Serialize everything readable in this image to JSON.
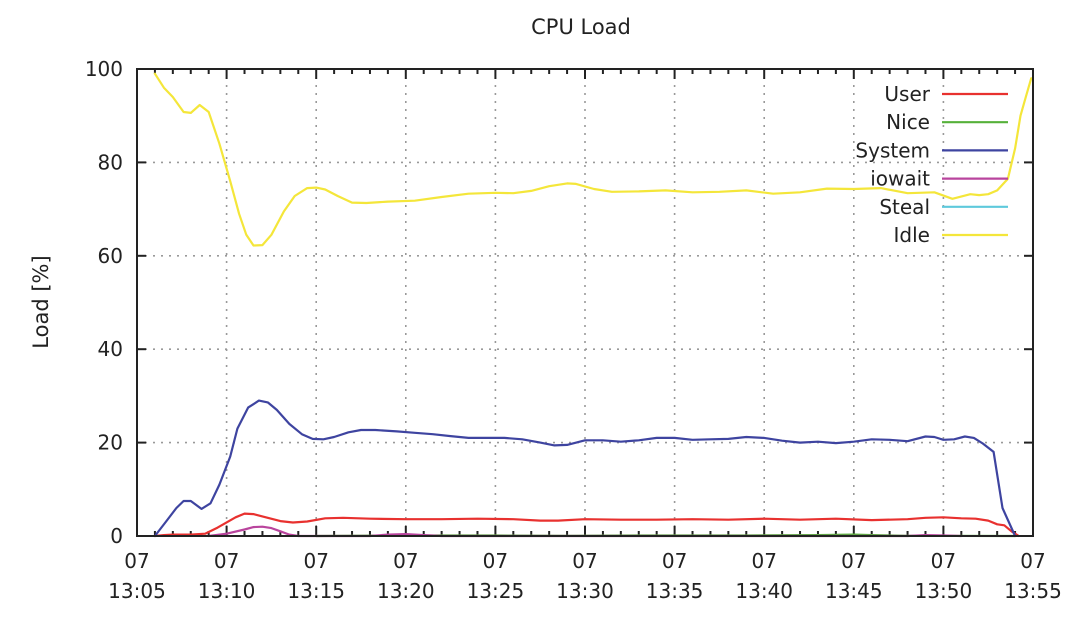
{
  "chart_data": {
    "type": "line",
    "title": "CPU Load",
    "xlabel": "",
    "ylabel": "Load [%]",
    "ylim": [
      0,
      100
    ],
    "xlim_minutes": [
      0,
      50
    ],
    "x_start_label": "13:05",
    "yticks": [
      0,
      20,
      40,
      60,
      80,
      100
    ],
    "xticks": [
      {
        "minute": 0,
        "line1": "07",
        "line2": "13:05"
      },
      {
        "minute": 5,
        "line1": "07",
        "line2": "13:10"
      },
      {
        "minute": 10,
        "line1": "07",
        "line2": "13:15"
      },
      {
        "minute": 15,
        "line1": "07",
        "line2": "13:20"
      },
      {
        "minute": 20,
        "line1": "07",
        "line2": "13:25"
      },
      {
        "minute": 25,
        "line1": "07",
        "line2": "13:30"
      },
      {
        "minute": 30,
        "line1": "07",
        "line2": "13:35"
      },
      {
        "minute": 35,
        "line1": "07",
        "line2": "13:40"
      },
      {
        "minute": 40,
        "line1": "07",
        "line2": "13:45"
      },
      {
        "minute": 45,
        "line1": "07",
        "line2": "13:50"
      },
      {
        "minute": 50,
        "line1": "07",
        "line2": "13:55"
      }
    ],
    "grid": true,
    "legend_position": "upper right (inside)",
    "series": [
      {
        "name": "User",
        "color": "#e8312f",
        "points": [
          [
            1,
            0
          ],
          [
            1.5,
            0.2
          ],
          [
            2,
            0.3
          ],
          [
            3,
            0.3
          ],
          [
            3.8,
            0.5
          ],
          [
            4.5,
            1.8
          ],
          [
            5.5,
            4
          ],
          [
            6,
            4.8
          ],
          [
            6.5,
            4.7
          ],
          [
            7,
            4.2
          ],
          [
            8,
            3.2
          ],
          [
            8.7,
            2.9
          ],
          [
            9.5,
            3.1
          ],
          [
            10.5,
            3.8
          ],
          [
            11.5,
            3.9
          ],
          [
            13,
            3.7
          ],
          [
            15,
            3.6
          ],
          [
            17,
            3.6
          ],
          [
            19,
            3.7
          ],
          [
            21,
            3.6
          ],
          [
            22.5,
            3.3
          ],
          [
            23.5,
            3.3
          ],
          [
            25,
            3.6
          ],
          [
            27,
            3.5
          ],
          [
            29,
            3.5
          ],
          [
            31,
            3.6
          ],
          [
            33,
            3.5
          ],
          [
            35,
            3.7
          ],
          [
            37,
            3.5
          ],
          [
            39,
            3.7
          ],
          [
            41,
            3.4
          ],
          [
            43,
            3.6
          ],
          [
            44,
            3.9
          ],
          [
            45,
            4
          ],
          [
            46,
            3.8
          ],
          [
            46.8,
            3.7
          ],
          [
            47.5,
            3.3
          ],
          [
            48,
            2.5
          ],
          [
            48.4,
            2.3
          ],
          [
            48.8,
            1
          ],
          [
            49.2,
            0
          ]
        ]
      },
      {
        "name": "Nice",
        "color": "#56b13a",
        "points": [
          [
            10,
            0
          ],
          [
            14,
            0.1
          ],
          [
            20,
            0.1
          ],
          [
            24,
            0.05
          ],
          [
            28,
            0.1
          ],
          [
            34,
            0.1
          ],
          [
            38,
            0.2
          ],
          [
            40,
            0.3
          ],
          [
            41,
            0.2
          ],
          [
            43,
            0.05
          ],
          [
            49,
            0
          ]
        ]
      },
      {
        "name": "System",
        "color": "#3e44a0",
        "points": [
          [
            1,
            0
          ],
          [
            1.6,
            3
          ],
          [
            2.2,
            6
          ],
          [
            2.6,
            7.5
          ],
          [
            3,
            7.5
          ],
          [
            3.6,
            5.8
          ],
          [
            4.1,
            7
          ],
          [
            4.6,
            11
          ],
          [
            5.2,
            17
          ],
          [
            5.6,
            23
          ],
          [
            6.2,
            27.5
          ],
          [
            6.8,
            29
          ],
          [
            7.3,
            28.6
          ],
          [
            7.8,
            27
          ],
          [
            8.5,
            24
          ],
          [
            9.2,
            21.8
          ],
          [
            9.8,
            20.8
          ],
          [
            10.4,
            20.7
          ],
          [
            11,
            21.2
          ],
          [
            11.8,
            22.2
          ],
          [
            12.5,
            22.7
          ],
          [
            13.3,
            22.7
          ],
          [
            14.5,
            22.4
          ],
          [
            15.5,
            22.1
          ],
          [
            16.5,
            21.8
          ],
          [
            17.5,
            21.4
          ],
          [
            18.5,
            21
          ],
          [
            19.5,
            21
          ],
          [
            20.5,
            21
          ],
          [
            21.5,
            20.7
          ],
          [
            22.5,
            20
          ],
          [
            23.3,
            19.4
          ],
          [
            24,
            19.5
          ],
          [
            25,
            20.5
          ],
          [
            26,
            20.5
          ],
          [
            27,
            20.2
          ],
          [
            28,
            20.5
          ],
          [
            29,
            21
          ],
          [
            30,
            21
          ],
          [
            31,
            20.6
          ],
          [
            32,
            20.7
          ],
          [
            33,
            20.8
          ],
          [
            34,
            21.2
          ],
          [
            35,
            21
          ],
          [
            36,
            20.4
          ],
          [
            37,
            20
          ],
          [
            38,
            20.2
          ],
          [
            39,
            19.9
          ],
          [
            40,
            20.2
          ],
          [
            41,
            20.7
          ],
          [
            42,
            20.6
          ],
          [
            43,
            20.3
          ],
          [
            44,
            21.3
          ],
          [
            44.5,
            21.2
          ],
          [
            45,
            20.6
          ],
          [
            45.6,
            20.7
          ],
          [
            46.2,
            21.3
          ],
          [
            46.7,
            21
          ],
          [
            47.2,
            19.8
          ],
          [
            47.8,
            18
          ],
          [
            48.3,
            6
          ],
          [
            49,
            0
          ]
        ]
      },
      {
        "name": "iowait",
        "color": "#b9449d",
        "points": [
          [
            4,
            0
          ],
          [
            5,
            0.5
          ],
          [
            6,
            1.4
          ],
          [
            6.5,
            1.9
          ],
          [
            7,
            2
          ],
          [
            7.5,
            1.7
          ],
          [
            8,
            1
          ],
          [
            8.5,
            0.3
          ],
          [
            9,
            0
          ],
          [
            13,
            0
          ],
          [
            14,
            0.3
          ],
          [
            15,
            0.4
          ],
          [
            16,
            0.2
          ],
          [
            17,
            0
          ],
          [
            43,
            0
          ],
          [
            44,
            0.2
          ],
          [
            45,
            0.1
          ],
          [
            46,
            0
          ]
        ]
      },
      {
        "name": "Steal",
        "color": "#5ec9dc",
        "points": []
      },
      {
        "name": "Idle",
        "color": "#f4e63a",
        "points": [
          [
            1,
            99
          ],
          [
            1.5,
            96
          ],
          [
            2,
            94
          ],
          [
            2.6,
            90.8
          ],
          [
            3,
            90.6
          ],
          [
            3.5,
            92.3
          ],
          [
            4,
            90.8
          ],
          [
            4.6,
            84
          ],
          [
            5.2,
            76
          ],
          [
            5.7,
            69
          ],
          [
            6.1,
            64.5
          ],
          [
            6.5,
            62.2
          ],
          [
            7,
            62.3
          ],
          [
            7.5,
            64.5
          ],
          [
            8.2,
            69.5
          ],
          [
            8.8,
            72.8
          ],
          [
            9.5,
            74.5
          ],
          [
            10,
            74.6
          ],
          [
            10.5,
            74.2
          ],
          [
            11.2,
            72.8
          ],
          [
            12,
            71.4
          ],
          [
            12.8,
            71.3
          ],
          [
            14,
            71.6
          ],
          [
            15.5,
            71.8
          ],
          [
            17,
            72.6
          ],
          [
            18.5,
            73.3
          ],
          [
            20,
            73.5
          ],
          [
            21,
            73.4
          ],
          [
            22,
            73.9
          ],
          [
            23,
            74.9
          ],
          [
            24,
            75.5
          ],
          [
            24.5,
            75.4
          ],
          [
            25.5,
            74.3
          ],
          [
            26.5,
            73.7
          ],
          [
            28,
            73.8
          ],
          [
            29.5,
            74
          ],
          [
            31,
            73.6
          ],
          [
            32.5,
            73.7
          ],
          [
            34,
            74
          ],
          [
            35.5,
            73.3
          ],
          [
            37,
            73.6
          ],
          [
            38.5,
            74.4
          ],
          [
            40,
            74.3
          ],
          [
            41.5,
            74.5
          ],
          [
            43,
            73.4
          ],
          [
            44.5,
            73.6
          ],
          [
            45.5,
            72.2
          ],
          [
            46.5,
            73.2
          ],
          [
            47,
            73
          ],
          [
            47.5,
            73.2
          ],
          [
            48,
            74
          ],
          [
            48.6,
            76.5
          ],
          [
            49,
            83
          ],
          [
            49.3,
            90
          ],
          [
            49.6,
            94
          ],
          [
            49.9,
            98
          ]
        ]
      }
    ]
  },
  "legend": {
    "items": [
      {
        "label": "User",
        "color": "#e8312f"
      },
      {
        "label": "Nice",
        "color": "#56b13a"
      },
      {
        "label": "System",
        "color": "#3e44a0"
      },
      {
        "label": "iowait",
        "color": "#b9449d"
      },
      {
        "label": "Steal",
        "color": "#5ec9dc"
      },
      {
        "label": "Idle",
        "color": "#f4e63a"
      }
    ]
  }
}
